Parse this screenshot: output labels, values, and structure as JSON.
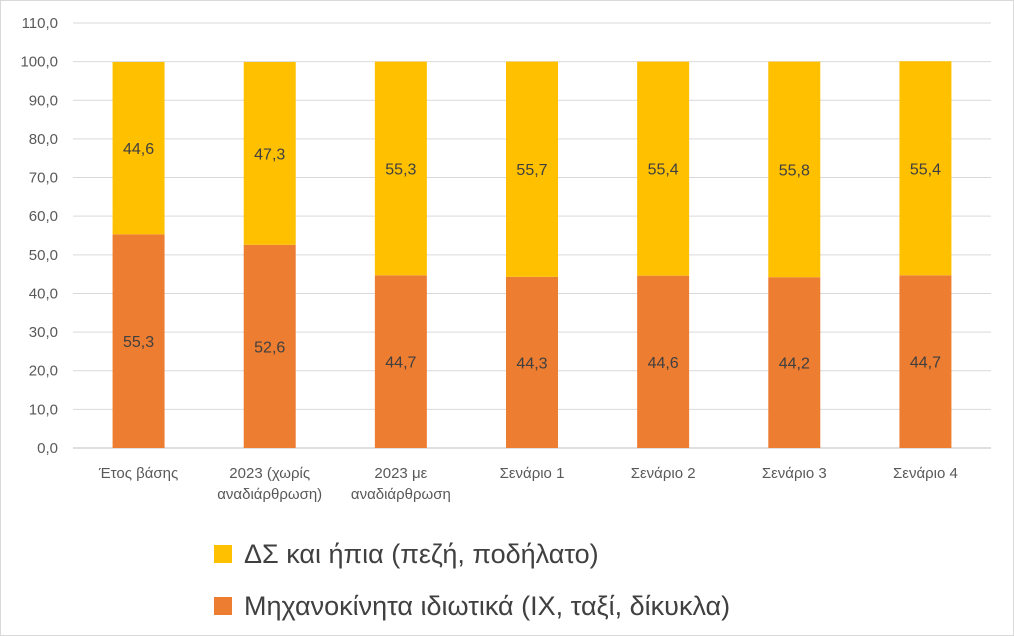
{
  "chart_data": {
    "type": "bar",
    "stacked": true,
    "categories": [
      [
        "Έτος βάσης"
      ],
      [
        "2023 (χωρίς",
        "αναδιάρθρωση)"
      ],
      [
        "2023 με",
        "αναδιάρθρωση"
      ],
      [
        "Σενάριο 1"
      ],
      [
        "Σενάριο 2"
      ],
      [
        "Σενάριο 3"
      ],
      [
        "Σενάριο 4"
      ]
    ],
    "series": [
      {
        "name": "Μηχανοκίνητα ιδιωτικά (ΙΧ, ταξί, δίκυκλα)",
        "color": "#ED7D31",
        "values": [
          55.3,
          52.6,
          44.7,
          44.3,
          44.6,
          44.2,
          44.7
        ],
        "labels": [
          "55,3",
          "52,6",
          "44,7",
          "44,3",
          "44,6",
          "44,2",
          "44,7"
        ]
      },
      {
        "name": "ΔΣ και ήπια (πεζή, ποδήλατο)",
        "color": "#FFC000",
        "values": [
          44.6,
          47.3,
          55.3,
          55.7,
          55.4,
          55.8,
          55.4
        ],
        "labels": [
          "44,6",
          "47,3",
          "55,3",
          "55,7",
          "55,4",
          "55,8",
          "55,4"
        ]
      }
    ],
    "ylim": [
      0,
      110
    ],
    "yticks": [
      "0,0",
      "10,0",
      "20,0",
      "30,0",
      "40,0",
      "50,0",
      "60,0",
      "70,0",
      "80,0",
      "90,0",
      "100,0",
      "110,0"
    ],
    "grid": true,
    "legend": "bottom",
    "legend_order": [
      1,
      0
    ]
  }
}
